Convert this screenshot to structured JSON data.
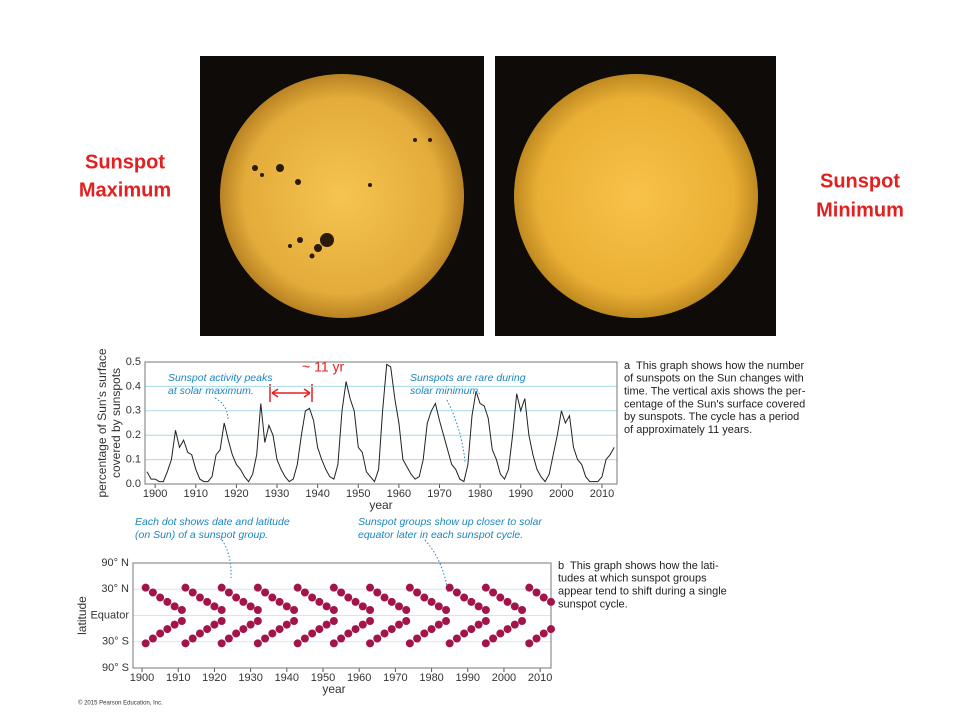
{
  "slide": {
    "photo_labels": [
      [
        "Sunspot",
        "Maximum"
      ],
      [
        "Sunspot",
        "Minimum"
      ]
    ],
    "copyright": "© 2015 Pearson Education, Inc."
  },
  "chart_data": [
    {
      "type": "line",
      "ylabel": [
        "percentage of Sun's surface",
        "covered by sunspots"
      ],
      "xlabel": "year",
      "color": "#222222",
      "grid": true,
      "xlim": [
        1897.5,
        2013.7
      ],
      "xticks": [
        1900,
        1910,
        1920,
        1930,
        1940,
        1950,
        1960,
        1970,
        1980,
        1990,
        2000,
        2010
      ],
      "ylim": [
        0,
        0.5
      ],
      "yticks": [
        {
          "value": 0,
          "label": "0.0"
        },
        0.1,
        0.2,
        0.3,
        0.4,
        0.5
      ],
      "x": [
        1898,
        1899,
        1900,
        1901,
        1902,
        1903,
        1904,
        1905,
        1906,
        1907,
        1908,
        1909,
        1910,
        1911,
        1912,
        1913,
        1914,
        1915,
        1916,
        1917,
        1918,
        1919,
        1920,
        1921,
        1922,
        1923,
        1924,
        1925,
        1926,
        1927,
        1928,
        1929,
        1930,
        1931,
        1932,
        1933,
        1934,
        1935,
        1936,
        1937,
        1938,
        1939,
        1940,
        1941,
        1942,
        1943,
        1944,
        1945,
        1946,
        1947,
        1948,
        1949,
        1950,
        1951,
        1952,
        1953,
        1954,
        1955,
        1956,
        1957,
        1958,
        1959,
        1960,
        1961,
        1962,
        1963,
        1964,
        1965,
        1966,
        1967,
        1968,
        1969,
        1970,
        1971,
        1972,
        1973,
        1974,
        1975,
        1976,
        1977,
        1978,
        1979,
        1980,
        1981,
        1982,
        1983,
        1984,
        1985,
        1986,
        1987,
        1988,
        1989,
        1990,
        1991,
        1992,
        1993,
        1994,
        1995,
        1996,
        1997,
        1998,
        1999,
        2000,
        2001,
        2002,
        2003,
        2004,
        2005,
        2006,
        2007,
        2008,
        2009,
        2010,
        2011,
        2012,
        2013
      ],
      "values": [
        0.05,
        0.02,
        0.02,
        0.01,
        0.01,
        0.05,
        0.1,
        0.22,
        0.15,
        0.18,
        0.13,
        0.12,
        0.06,
        0.02,
        0.01,
        0.01,
        0.03,
        0.12,
        0.14,
        0.25,
        0.18,
        0.12,
        0.08,
        0.06,
        0.03,
        0.01,
        0.04,
        0.12,
        0.33,
        0.17,
        0.24,
        0.2,
        0.1,
        0.06,
        0.03,
        0.01,
        0.02,
        0.08,
        0.2,
        0.3,
        0.31,
        0.26,
        0.15,
        0.1,
        0.06,
        0.03,
        0.02,
        0.08,
        0.3,
        0.42,
        0.35,
        0.3,
        0.15,
        0.13,
        0.05,
        0.03,
        0.01,
        0.06,
        0.3,
        0.49,
        0.48,
        0.35,
        0.25,
        0.1,
        0.07,
        0.04,
        0.02,
        0.03,
        0.1,
        0.25,
        0.3,
        0.33,
        0.26,
        0.2,
        0.14,
        0.08,
        0.06,
        0.02,
        0.01,
        0.08,
        0.28,
        0.38,
        0.33,
        0.32,
        0.27,
        0.14,
        0.1,
        0.04,
        0.02,
        0.06,
        0.2,
        0.37,
        0.3,
        0.35,
        0.2,
        0.12,
        0.06,
        0.03,
        0.01,
        0.04,
        0.12,
        0.2,
        0.3,
        0.25,
        0.28,
        0.15,
        0.1,
        0.08,
        0.03,
        0.01,
        0.01,
        0.01,
        0.03,
        0.1,
        0.12,
        0.15
      ],
      "annotations": [
        [
          "Sunspot activity peaks",
          "at solar maximum."
        ],
        [
          "Sunspots are rare during",
          "solar minimum."
        ],
        [
          "~ 11 yr"
        ]
      ],
      "caption": [
        "a  This graph shows how the number",
        "of sunspots on the Sun changes with",
        "time. The vertical axis shows the per-",
        "centage of the Sun's surface covered",
        "by sunspots. The cycle has a period",
        "of approximately 11 years."
      ]
    },
    {
      "type": "scatter",
      "ylabel": [
        "latitude"
      ],
      "xlabel": "year",
      "color": "#a3154a",
      "grid": true,
      "yscale": "sine",
      "xlim": [
        1897.5,
        2013
      ],
      "xticks": [
        1900,
        1910,
        1920,
        1930,
        1940,
        1950,
        1960,
        1970,
        1980,
        1990,
        2000,
        2010
      ],
      "ylim": [
        -90,
        90
      ],
      "yticks": [
        {
          "value": 90,
          "label": "90° N"
        },
        {
          "value": 30,
          "label": "30° N"
        },
        {
          "value": 0,
          "label": "Equator"
        },
        {
          "value": -30,
          "label": "30° S"
        },
        {
          "value": -90,
          "label": "90° S"
        }
      ],
      "x": [
        1901,
        1901,
        1903,
        1903,
        1905,
        1905,
        1907,
        1907,
        1909,
        1909,
        1911,
        1911,
        1912,
        1912,
        1914,
        1914,
        1916,
        1916,
        1918,
        1918,
        1920,
        1920,
        1922,
        1922,
        1922,
        1922,
        1924,
        1924,
        1926,
        1926,
        1928,
        1928,
        1930,
        1930,
        1932,
        1932,
        1932,
        1932,
        1934,
        1934,
        1936,
        1936,
        1938,
        1938,
        1940,
        1940,
        1942,
        1942,
        1943,
        1943,
        1945,
        1945,
        1947,
        1947,
        1949,
        1949,
        1951,
        1951,
        1953,
        1953,
        1953,
        1953,
        1955,
        1955,
        1957,
        1957,
        1959,
        1959,
        1961,
        1961,
        1963,
        1963,
        1963,
        1963,
        1965,
        1965,
        1967,
        1967,
        1969,
        1969,
        1971,
        1971,
        1973,
        1973,
        1974,
        1974,
        1976,
        1976,
        1978,
        1978,
        1980,
        1980,
        1982,
        1982,
        1984,
        1984,
        1985,
        1985,
        1987,
        1987,
        1989,
        1989,
        1991,
        1991,
        1993,
        1993,
        1995,
        1995,
        1995,
        1995,
        1997,
        1997,
        1999,
        1999,
        2001,
        2001,
        2003,
        2003,
        2005,
        2005,
        2007,
        2007,
        2009,
        2009,
        2011,
        2011,
        2013,
        2013
      ],
      "values": [
        32,
        -32,
        26,
        -26,
        20,
        -20,
        15,
        -15,
        10,
        -10,
        6,
        -6,
        32,
        -32,
        26,
        -26,
        20,
        -20,
        15,
        -15,
        10,
        -10,
        6,
        -6,
        32,
        -32,
        26,
        -26,
        20,
        -20,
        15,
        -15,
        10,
        -10,
        6,
        -6,
        32,
        -32,
        26,
        -26,
        20,
        -20,
        15,
        -15,
        10,
        -10,
        6,
        -6,
        32,
        -32,
        26,
        -26,
        20,
        -20,
        15,
        -15,
        10,
        -10,
        6,
        -6,
        32,
        -32,
        26,
        -26,
        20,
        -20,
        15,
        -15,
        10,
        -10,
        6,
        -6,
        32,
        -32,
        26,
        -26,
        20,
        -20,
        15,
        -15,
        10,
        -10,
        6,
        -6,
        32,
        -32,
        26,
        -26,
        20,
        -20,
        15,
        -15,
        10,
        -10,
        6,
        -6,
        32,
        -32,
        26,
        -26,
        20,
        -20,
        15,
        -15,
        10,
        -10,
        6,
        -6,
        32,
        -32,
        26,
        -26,
        20,
        -20,
        15,
        -15,
        10,
        -10,
        6,
        -6,
        32,
        -32,
        26,
        -26,
        20,
        -20,
        15,
        -15
      ],
      "annotations": [
        [
          "Each dot shows date and latitude",
          "(on Sun) of a sunspot group."
        ],
        [
          "Sunspot groups show up closer to solar",
          "equator later in each sunspot cycle."
        ]
      ],
      "caption": [
        "b  This graph shows how the lati-",
        "tudes at which sunspot groups",
        "appear tend to shift during a single",
        "sunspot cycle."
      ]
    }
  ]
}
